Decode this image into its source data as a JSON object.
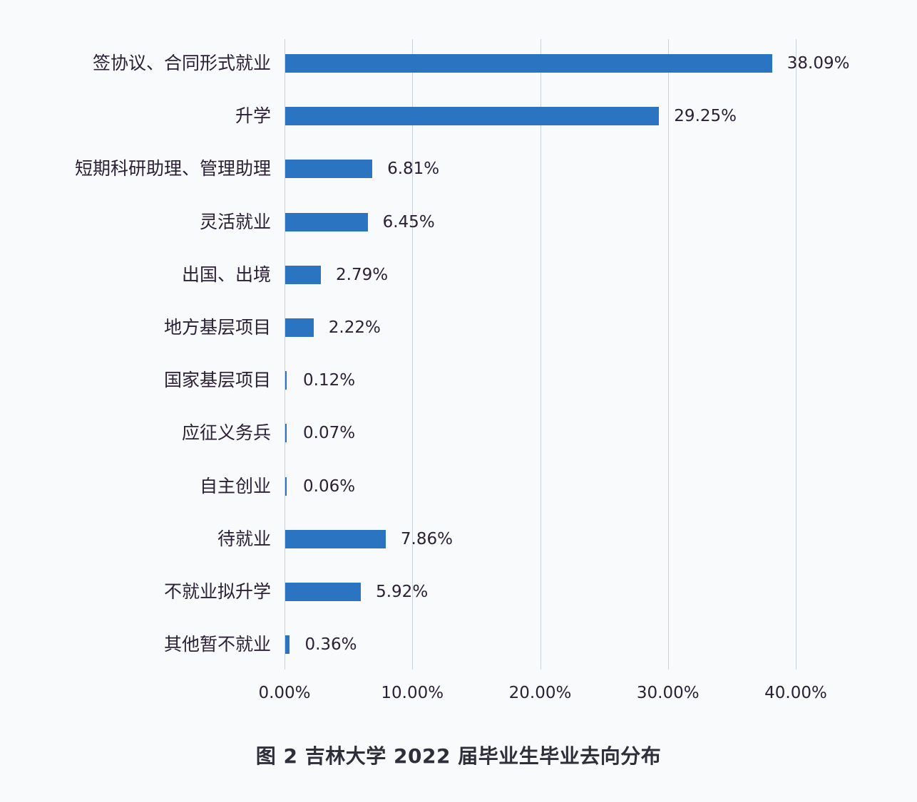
{
  "chart_data": {
    "type": "bar",
    "orientation": "horizontal",
    "title": "图 2 吉林大学 2022 届毕业生毕业去向分布",
    "xlabel": "",
    "ylabel": "",
    "xlim": [
      0,
      40
    ],
    "grid": true,
    "legend": null,
    "bar_color": "#2b74c1",
    "categories": [
      "签协议、合同形式就业",
      "升学",
      "短期科研助理、管理助理",
      "灵活就业",
      "出国、出境",
      "地方基层项目",
      "国家基层项目",
      "应征义务兵",
      "自主创业",
      "待就业",
      "不就业拟升学",
      "其他暂不就业"
    ],
    "values": [
      38.09,
      29.25,
      6.81,
      6.45,
      2.79,
      2.22,
      0.12,
      0.07,
      0.06,
      7.86,
      5.92,
      0.36
    ],
    "value_labels": [
      "38.09%",
      "29.25%",
      "6.81%",
      "6.45%",
      "2.79%",
      "2.22%",
      "0.12%",
      "0.07%",
      "0.06%",
      "7.86%",
      "5.92%",
      "0.36%"
    ],
    "x_ticks": [
      0,
      10,
      20,
      30,
      40
    ],
    "x_tick_labels": [
      "0.00%",
      "10.00%",
      "20.00%",
      "30.00%",
      "40.00%"
    ]
  }
}
